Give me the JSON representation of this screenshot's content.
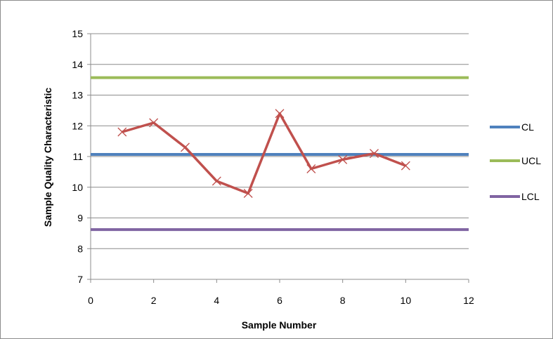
{
  "chart_data": {
    "type": "scatter",
    "title": "",
    "xlabel": "Sample Number",
    "ylabel": "Sample Quality Characteristic",
    "xlim": [
      0,
      12
    ],
    "ylim": [
      7,
      15
    ],
    "xticks": [
      "0",
      "2",
      "4",
      "6",
      "8",
      "10",
      "12"
    ],
    "yticks": [
      "7",
      "8",
      "9",
      "10",
      "11",
      "12",
      "13",
      "14",
      "15"
    ],
    "grid": "horizontal",
    "legend_position": "right",
    "series": [
      {
        "name": "",
        "kind": "line-with-x-markers",
        "color": "#c0504d",
        "x": [
          1,
          2,
          3,
          4,
          5,
          6,
          7,
          8,
          9,
          10
        ],
        "y": [
          11.8,
          12.1,
          11.3,
          10.2,
          9.8,
          12.4,
          10.6,
          10.9,
          11.1,
          10.7
        ]
      },
      {
        "name": "CL",
        "kind": "reference-line",
        "color": "#4f81bd",
        "x": [
          0,
          12
        ],
        "y": [
          11.07,
          11.07
        ]
      },
      {
        "name": "UCL",
        "kind": "reference-line",
        "color": "#9bbb59",
        "x": [
          0,
          12
        ],
        "y": [
          13.57,
          13.57
        ]
      },
      {
        "name": "LCL",
        "kind": "reference-line",
        "color": "#8064a2",
        "x": [
          0,
          12
        ],
        "y": [
          8.62,
          8.62
        ]
      }
    ]
  },
  "legend": [
    {
      "label": "CL",
      "color": "#4f81bd"
    },
    {
      "label": "UCL",
      "color": "#9bbb59"
    },
    {
      "label": "LCL",
      "color": "#8064a2"
    }
  ]
}
